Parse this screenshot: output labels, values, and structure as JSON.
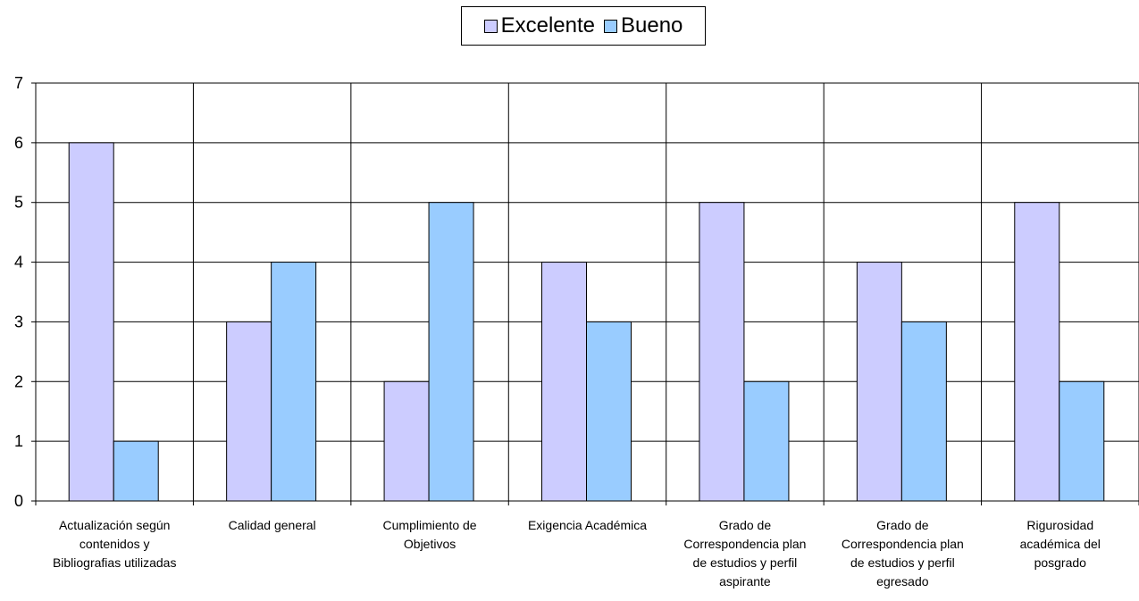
{
  "chart_data": {
    "type": "bar",
    "categories": [
      "Actualización según contenidos y Bibliografias utilizadas",
      "Calidad general",
      "Cumplimiento de Objetivos",
      "Exigencia  Académica",
      "Grado de Correspondencia plan de estudios y perfil aspirante",
      "Grado de Correspondencia plan de estudios y perfil egresado",
      "Rigurosidad académica del posgrado"
    ],
    "category_lines": [
      [
        "Actualización según",
        "contenidos y",
        "Bibliografias utilizadas"
      ],
      [
        "Calidad general"
      ],
      [
        "Cumplimiento de",
        "Objetivos"
      ],
      [
        "Exigencia  Académica"
      ],
      [
        "Grado de",
        "Correspondencia plan",
        "de estudios y perfil",
        "aspirante"
      ],
      [
        "Grado de",
        "Correspondencia plan",
        "de estudios y perfil",
        "egresado"
      ],
      [
        "Rigurosidad",
        "académica del",
        "posgrado"
      ]
    ],
    "series": [
      {
        "name": "Excelente",
        "color": "#ccccff",
        "values": [
          6,
          3,
          2,
          4,
          5,
          4,
          5
        ]
      },
      {
        "name": "Bueno",
        "color": "#99ccff",
        "values": [
          1,
          4,
          5,
          3,
          2,
          3,
          2
        ]
      }
    ],
    "ylim": [
      0,
      7
    ],
    "yticks": [
      0,
      1,
      2,
      3,
      4,
      5,
      6,
      7
    ],
    "grid": true,
    "legend_position": "top-center",
    "title": "",
    "xlabel": "",
    "ylabel": ""
  }
}
